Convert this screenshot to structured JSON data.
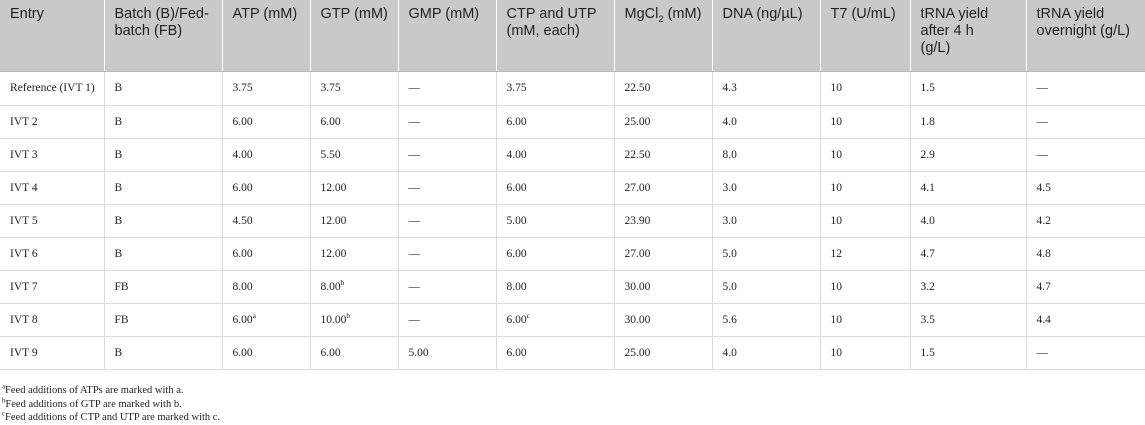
{
  "headers": [
    "Entry",
    "Batch (B)/Fed-batch (FB)",
    "ATP (mM)",
    "GTP (mM)",
    "GMP (mM)",
    "CTP and UTP (mM, each)",
    "MgCl2 (mM)",
    "DNA (ng/µL)",
    "T7 (U/mL)",
    "tRNA yield after 4 h (g/L)",
    "tRNA yield overnight (g/L)"
  ],
  "rows": [
    {
      "entry": "Reference (IVT 1)",
      "batch": "B",
      "atp": "3.75",
      "atp_sup": "",
      "gtp": "3.75",
      "gtp_sup": "",
      "gmp": "—",
      "ctp": "3.75",
      "ctp_sup": "",
      "mg": "22.50",
      "dna": "4.3",
      "t7": "10",
      "y4": "1.5",
      "yon": "—"
    },
    {
      "entry": "IVT 2",
      "batch": "B",
      "atp": "6.00",
      "atp_sup": "",
      "gtp": "6.00",
      "gtp_sup": "",
      "gmp": "—",
      "ctp": "6.00",
      "ctp_sup": "",
      "mg": "25.00",
      "dna": "4.0",
      "t7": "10",
      "y4": "1.8",
      "yon": "—"
    },
    {
      "entry": "IVT 3",
      "batch": "B",
      "atp": "4.00",
      "atp_sup": "",
      "gtp": "5.50",
      "gtp_sup": "",
      "gmp": "—",
      "ctp": "4.00",
      "ctp_sup": "",
      "mg": "22.50",
      "dna": "8.0",
      "t7": "10",
      "y4": "2.9",
      "yon": "—"
    },
    {
      "entry": "IVT 4",
      "batch": "B",
      "atp": "6.00",
      "atp_sup": "",
      "gtp": "12.00",
      "gtp_sup": "",
      "gmp": "—",
      "ctp": "6.00",
      "ctp_sup": "",
      "mg": "27.00",
      "dna": "3.0",
      "t7": "10",
      "y4": "4.1",
      "yon": "4.5"
    },
    {
      "entry": "IVT 5",
      "batch": "B",
      "atp": "4.50",
      "atp_sup": "",
      "gtp": "12.00",
      "gtp_sup": "",
      "gmp": "—",
      "ctp": "5.00",
      "ctp_sup": "",
      "mg": "23.90",
      "dna": "3.0",
      "t7": "10",
      "y4": "4.0",
      "yon": "4.2"
    },
    {
      "entry": "IVT 6",
      "batch": "B",
      "atp": "6.00",
      "atp_sup": "",
      "gtp": "12.00",
      "gtp_sup": "",
      "gmp": "—",
      "ctp": "6.00",
      "ctp_sup": "",
      "mg": "27.00",
      "dna": "5.0",
      "t7": "12",
      "y4": "4.7",
      "yon": "4.8"
    },
    {
      "entry": "IVT 7",
      "batch": "FB",
      "atp": "8.00",
      "atp_sup": "",
      "gtp": "8.00",
      "gtp_sup": "b",
      "gmp": "—",
      "ctp": "8.00",
      "ctp_sup": "",
      "mg": "30.00",
      "dna": "5.0",
      "t7": "10",
      "y4": "3.2",
      "yon": "4.7"
    },
    {
      "entry": "IVT 8",
      "batch": "FB",
      "atp": "6.00",
      "atp_sup": "a",
      "gtp": "10.00",
      "gtp_sup": "b",
      "gmp": "—",
      "ctp": "6.00",
      "ctp_sup": "c",
      "mg": "30.00",
      "dna": "5.6",
      "t7": "10",
      "y4": "3.5",
      "yon": "4.4"
    },
    {
      "entry": "IVT 9",
      "batch": "B",
      "atp": "6.00",
      "atp_sup": "",
      "gtp": "6.00",
      "gtp_sup": "",
      "gmp": "5.00",
      "ctp": "6.00",
      "ctp_sup": "",
      "mg": "25.00",
      "dna": "4.0",
      "t7": "10",
      "y4": "1.5",
      "yon": "—"
    }
  ],
  "footnotes": [
    {
      "mark": "a",
      "text": "Feed additions of ATPs are marked with a."
    },
    {
      "mark": "b",
      "text": "Feed additions of GTP are marked with b."
    },
    {
      "mark": "c",
      "text": "Feed additions of CTP and UTP are marked with c."
    }
  ]
}
